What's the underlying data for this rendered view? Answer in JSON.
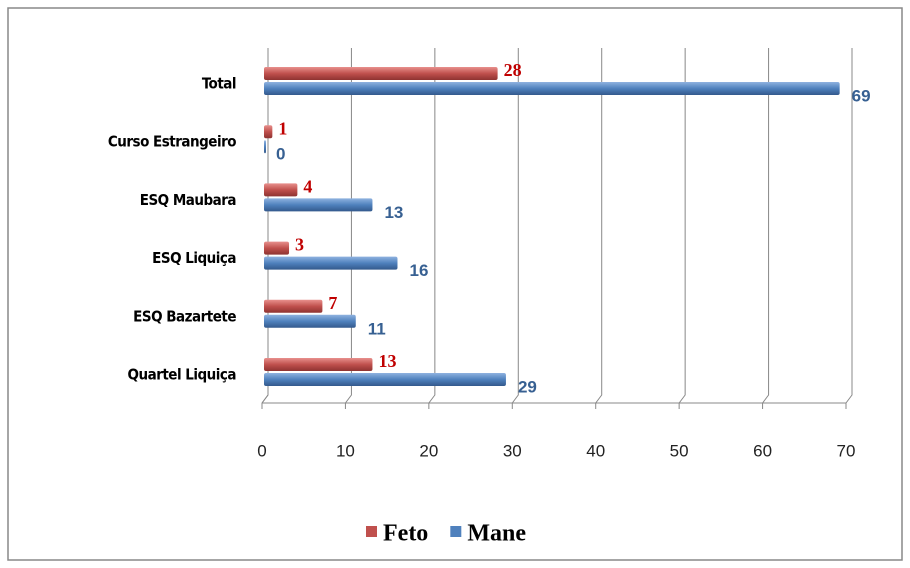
{
  "chart_data": {
    "type": "bar",
    "orientation": "horizontal",
    "categories": [
      "Total",
      "Curso Estrangeiro",
      "ESQ Maubara",
      "ESQ Liquiça",
      "ESQ Bazartete",
      "Quartel Liquiça"
    ],
    "series": [
      {
        "name": "Feto",
        "color": "#c0504d",
        "values": [
          28,
          1,
          4,
          3,
          7,
          13
        ]
      },
      {
        "name": "Mane",
        "color": "#4f81bd",
        "values": [
          69,
          0,
          13,
          16,
          11,
          29
        ]
      }
    ],
    "xlim": [
      0,
      70
    ],
    "xticks": [
      0,
      10,
      20,
      30,
      40,
      50,
      60,
      70
    ],
    "grid": true,
    "legend": "bottom"
  }
}
